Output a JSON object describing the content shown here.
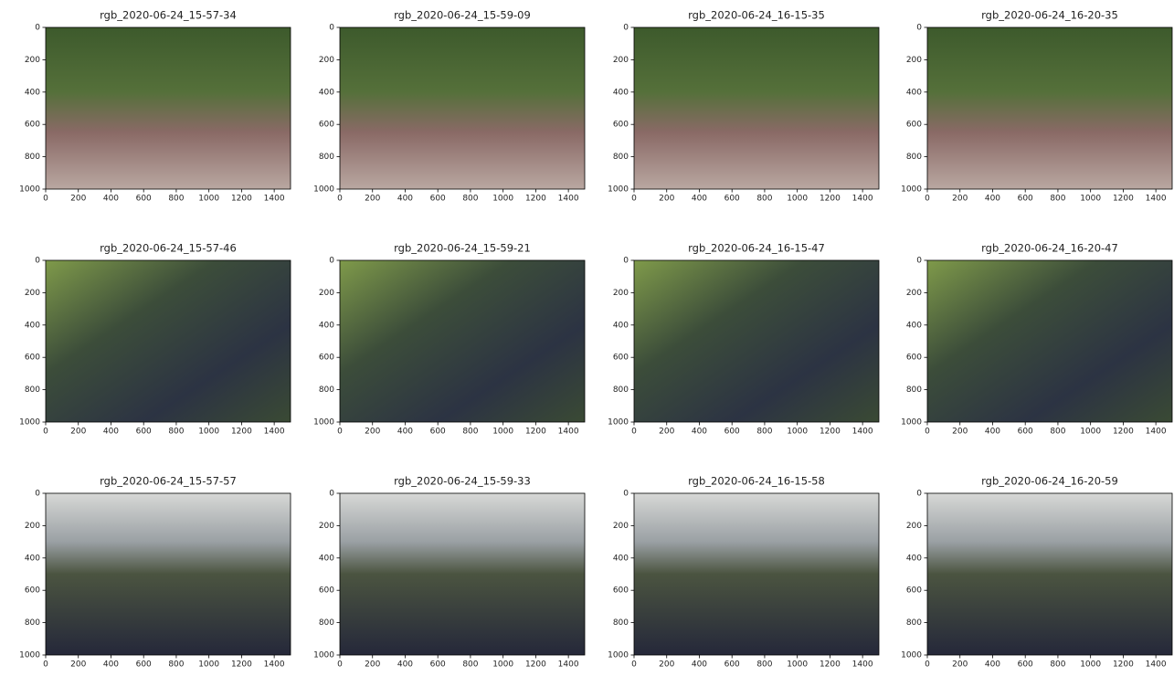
{
  "chart_data": [
    {
      "type": "image",
      "title": "rgb_2020-06-24_15-57-34",
      "xlim": [
        0,
        1500
      ],
      "ylim": [
        1000,
        0
      ],
      "xticks": [
        0,
        200,
        400,
        600,
        800,
        1000,
        1200,
        1400
      ],
      "yticks": [
        0,
        200,
        400,
        600,
        800,
        1000
      ]
    },
    {
      "type": "image",
      "title": "rgb_2020-06-24_15-59-09",
      "xlim": [
        0,
        1500
      ],
      "ylim": [
        1000,
        0
      ],
      "xticks": [
        0,
        200,
        400,
        600,
        800,
        1000,
        1200,
        1400
      ],
      "yticks": [
        0,
        200,
        400,
        600,
        800,
        1000
      ]
    },
    {
      "type": "image",
      "title": "rgb_2020-06-24_16-15-35",
      "xlim": [
        0,
        1500
      ],
      "ylim": [
        1000,
        0
      ],
      "xticks": [
        0,
        200,
        400,
        600,
        800,
        1000,
        1200,
        1400
      ],
      "yticks": [
        0,
        200,
        400,
        600,
        800,
        1000
      ]
    },
    {
      "type": "image",
      "title": "rgb_2020-06-24_16-20-35",
      "xlim": [
        0,
        1500
      ],
      "ylim": [
        1000,
        0
      ],
      "xticks": [
        0,
        200,
        400,
        600,
        800,
        1000,
        1200,
        1400
      ],
      "yticks": [
        0,
        200,
        400,
        600,
        800,
        1000
      ]
    },
    {
      "type": "image",
      "title": "rgb_2020-06-24_15-57-46",
      "xlim": [
        0,
        1500
      ],
      "ylim": [
        1000,
        0
      ],
      "xticks": [
        0,
        200,
        400,
        600,
        800,
        1000,
        1200,
        1400
      ],
      "yticks": [
        0,
        200,
        400,
        600,
        800,
        1000
      ]
    },
    {
      "type": "image",
      "title": "rgb_2020-06-24_15-59-21",
      "xlim": [
        0,
        1500
      ],
      "ylim": [
        1000,
        0
      ],
      "xticks": [
        0,
        200,
        400,
        600,
        800,
        1000,
        1200,
        1400
      ],
      "yticks": [
        0,
        200,
        400,
        600,
        800,
        1000
      ]
    },
    {
      "type": "image",
      "title": "rgb_2020-06-24_16-15-47",
      "xlim": [
        0,
        1500
      ],
      "ylim": [
        1000,
        0
      ],
      "xticks": [
        0,
        200,
        400,
        600,
        800,
        1000,
        1200,
        1400
      ],
      "yticks": [
        0,
        200,
        400,
        600,
        800,
        1000
      ]
    },
    {
      "type": "image",
      "title": "rgb_2020-06-24_16-20-47",
      "xlim": [
        0,
        1500
      ],
      "ylim": [
        1000,
        0
      ],
      "xticks": [
        0,
        200,
        400,
        600,
        800,
        1000,
        1200,
        1400
      ],
      "yticks": [
        0,
        200,
        400,
        600,
        800,
        1000
      ]
    },
    {
      "type": "image",
      "title": "rgb_2020-06-24_15-57-57",
      "xlim": [
        0,
        1500
      ],
      "ylim": [
        1000,
        0
      ],
      "xticks": [
        0,
        200,
        400,
        600,
        800,
        1000,
        1200,
        1400
      ],
      "yticks": [
        0,
        200,
        400,
        600,
        800,
        1000
      ]
    },
    {
      "type": "image",
      "title": "rgb_2020-06-24_15-59-33",
      "xlim": [
        0,
        1500
      ],
      "ylim": [
        1000,
        0
      ],
      "xticks": [
        0,
        200,
        400,
        600,
        800,
        1000,
        1200,
        1400
      ],
      "yticks": [
        0,
        200,
        400,
        600,
        800,
        1000
      ]
    },
    {
      "type": "image",
      "title": "rgb_2020-06-24_16-15-58",
      "xlim": [
        0,
        1500
      ],
      "ylim": [
        1000,
        0
      ],
      "xticks": [
        0,
        200,
        400,
        600,
        800,
        1000,
        1200,
        1400
      ],
      "yticks": [
        0,
        200,
        400,
        600,
        800,
        1000
      ]
    },
    {
      "type": "image",
      "title": "rgb_2020-06-24_16-20-59",
      "xlim": [
        0,
        1500
      ],
      "ylim": [
        1000,
        0
      ],
      "xticks": [
        0,
        200,
        400,
        600,
        800,
        1000,
        1200,
        1400
      ],
      "yticks": [
        0,
        200,
        400,
        600,
        800,
        1000
      ]
    }
  ]
}
